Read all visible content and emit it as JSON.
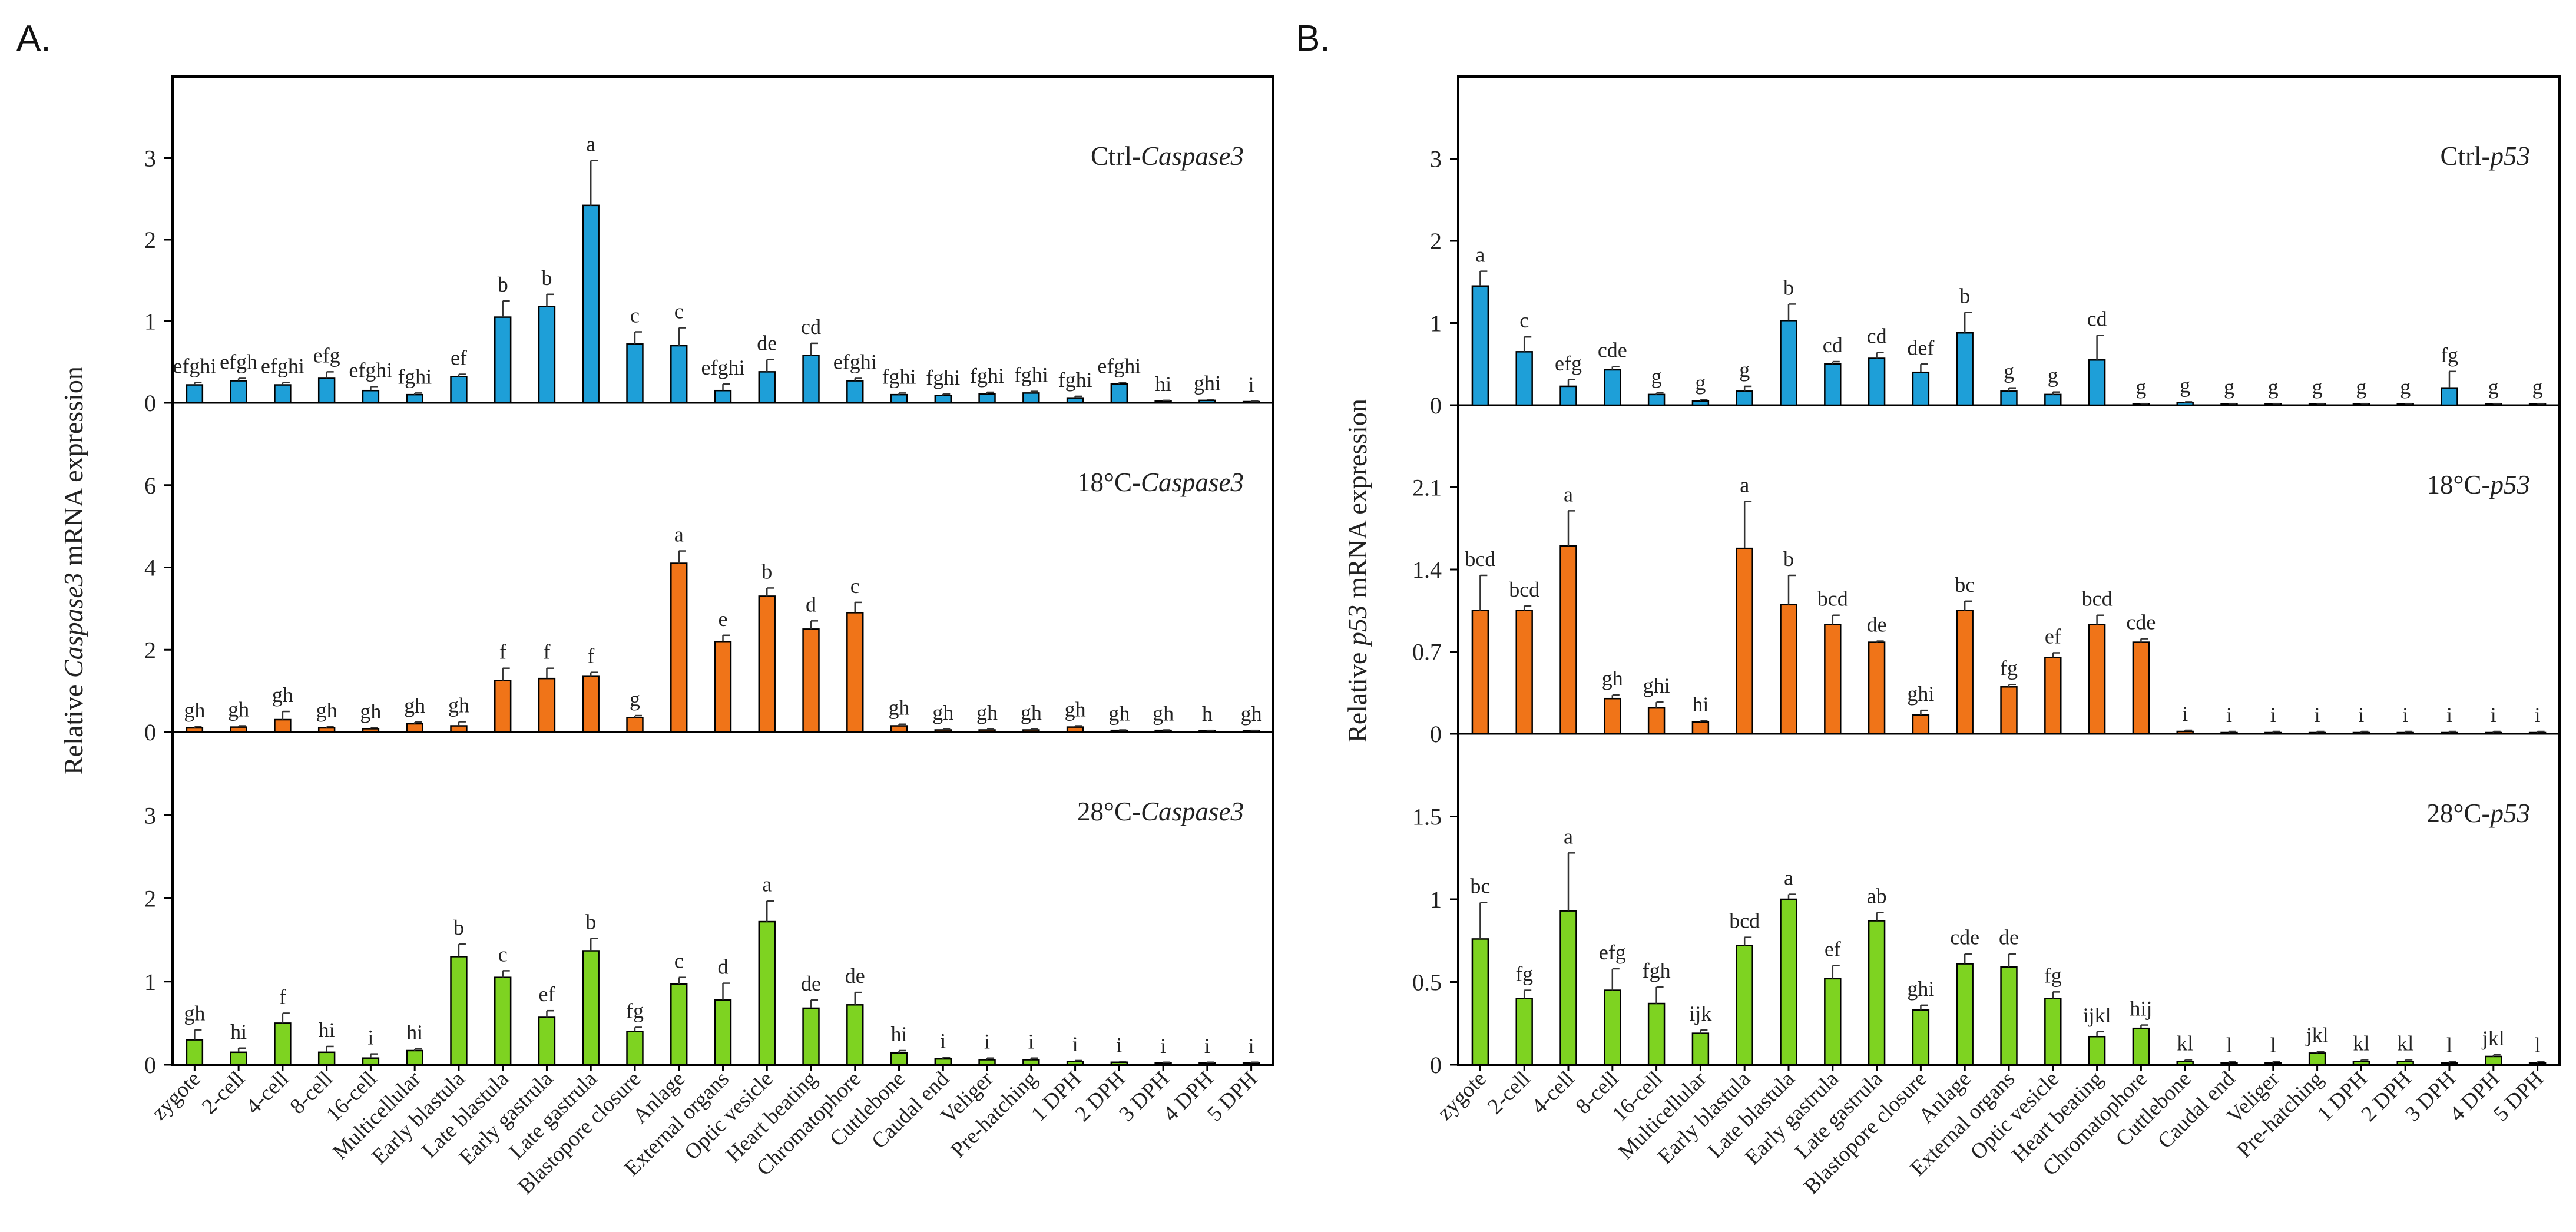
{
  "figure": {
    "panel_labels": [
      "A.",
      "B."
    ]
  },
  "colors": {
    "ctrl": "#1e9fd8",
    "cold": "#f07418",
    "warm": "#7ed321",
    "axis": "#000000",
    "error": "#333333"
  },
  "chart_data": [
    {
      "panel": "A.",
      "type": "bar",
      "ylabel_parts": [
        "Relative ",
        "Caspase3",
        " mRNA expression"
      ],
      "categories": [
        "zygote",
        "2-cell",
        "4-cell",
        "8-cell",
        "16-cell",
        "Multicellular",
        "Early blastula",
        "Late blastula",
        "Early gastrula",
        "Late gastrula",
        "Blastopore closure",
        "Anlage",
        "External organs",
        "Optic vesicle",
        "Heart beating",
        "Chromatophore",
        "Cuttlebone",
        "Caudal end",
        "Veliger",
        "Pre-hatching",
        "1 DPH",
        "2 DPH",
        "3 DPH",
        "4 DPH",
        "5 DPH"
      ],
      "subplots": [
        {
          "label_prefix": "Ctrl-",
          "label_gene": "Caspase3",
          "color_key": "ctrl",
          "ylim": [
            0,
            4
          ],
          "yticks": [
            0,
            1,
            2,
            3
          ],
          "tick_labels": [
            "0",
            "1",
            "2",
            "3"
          ],
          "values": [
            0.22,
            0.27,
            0.22,
            0.3,
            0.15,
            0.1,
            0.32,
            1.05,
            1.18,
            2.42,
            0.72,
            0.7,
            0.15,
            0.38,
            0.58,
            0.27,
            0.1,
            0.09,
            0.11,
            0.12,
            0.06,
            0.23,
            0.02,
            0.03,
            0.01
          ],
          "errors": [
            0.03,
            0.03,
            0.03,
            0.08,
            0.05,
            0.02,
            0.03,
            0.2,
            0.15,
            0.55,
            0.15,
            0.22,
            0.08,
            0.15,
            0.15,
            0.03,
            0.02,
            0.02,
            0.02,
            0.02,
            0.02,
            0.02,
            0.01,
            0.01,
            0.01
          ],
          "letters": [
            "efghi",
            "efgh",
            "efghi",
            "efg",
            "efghi",
            "fghi",
            "ef",
            "b",
            "b",
            "a",
            "c",
            "c",
            "efghi",
            "de",
            "cd",
            "efghi",
            "fghi",
            "fghi",
            "fghi",
            "fghi",
            "fghi",
            "efghi",
            "hi",
            "ghi",
            "i"
          ]
        },
        {
          "label_prefix": "18°C-",
          "label_gene": "Caspase3",
          "color_key": "cold",
          "ylim": [
            0,
            8
          ],
          "yticks": [
            0,
            2,
            4,
            6
          ],
          "tick_labels": [
            "0",
            "2",
            "4",
            "6"
          ],
          "values": [
            0.1,
            0.12,
            0.3,
            0.1,
            0.08,
            0.2,
            0.15,
            1.25,
            1.3,
            1.35,
            0.35,
            4.1,
            2.2,
            3.3,
            2.5,
            2.9,
            0.15,
            0.05,
            0.05,
            0.05,
            0.12,
            0.04,
            0.04,
            0.03,
            0.03
          ],
          "errors": [
            0.03,
            0.03,
            0.2,
            0.03,
            0.02,
            0.04,
            0.1,
            0.3,
            0.25,
            0.1,
            0.05,
            0.3,
            0.15,
            0.2,
            0.2,
            0.25,
            0.04,
            0.02,
            0.02,
            0.02,
            0.03,
            0.01,
            0.01,
            0.01,
            0.01
          ],
          "letters": [
            "gh",
            "gh",
            "gh",
            "gh",
            "gh",
            "gh",
            "gh",
            "f",
            "f",
            "f",
            "g",
            "a",
            "e",
            "b",
            "d",
            "c",
            "gh",
            "gh",
            "gh",
            "gh",
            "gh",
            "gh",
            "gh",
            "h",
            "gh"
          ]
        },
        {
          "label_prefix": "28°C-",
          "label_gene": "Caspase3",
          "color_key": "warm",
          "ylim": [
            0,
            4
          ],
          "yticks": [
            0,
            1,
            2,
            3
          ],
          "tick_labels": [
            "0",
            "1",
            "2",
            "3"
          ],
          "values": [
            0.3,
            0.15,
            0.5,
            0.15,
            0.08,
            0.17,
            1.3,
            1.05,
            0.57,
            1.37,
            0.4,
            0.97,
            0.78,
            1.72,
            0.68,
            0.72,
            0.14,
            0.07,
            0.06,
            0.06,
            0.04,
            0.03,
            0.02,
            0.02,
            0.02
          ],
          "errors": [
            0.12,
            0.05,
            0.12,
            0.07,
            0.05,
            0.02,
            0.15,
            0.08,
            0.08,
            0.15,
            0.05,
            0.08,
            0.2,
            0.25,
            0.1,
            0.15,
            0.03,
            0.02,
            0.02,
            0.02,
            0.01,
            0.01,
            0.01,
            0.01,
            0.01
          ],
          "letters": [
            "gh",
            "hi",
            "f",
            "hi",
            "i",
            "hi",
            "b",
            "c",
            "ef",
            "b",
            "fg",
            "c",
            "d",
            "a",
            "de",
            "de",
            "hi",
            "i",
            "i",
            "i",
            "i",
            "i",
            "i",
            "i",
            "i"
          ]
        }
      ]
    },
    {
      "panel": "B.",
      "type": "bar",
      "ylabel_parts": [
        "Relative ",
        "p53",
        " mRNA expression"
      ],
      "categories": [
        "zygote",
        "2-cell",
        "4-cell",
        "8-cell",
        "16-cell",
        "Multicellular",
        "Early blastula",
        "Late blastula",
        "Early gastrula",
        "Late gastrula",
        "Blastopore closure",
        "Anlage",
        "External organs",
        "Optic vesicle",
        "Heart beating",
        "Chromatophore",
        "Cuttlebone",
        "Caudal end",
        "Veliger",
        "Pre-hatching",
        "1 DPH",
        "2 DPH",
        "3 DPH",
        "4 DPH",
        "5 DPH"
      ],
      "subplots": [
        {
          "label_prefix": "Ctrl-",
          "label_gene": "p53",
          "color_key": "ctrl",
          "ylim": [
            0,
            4
          ],
          "yticks": [
            0,
            1,
            2,
            3
          ],
          "tick_labels": [
            "0",
            "1",
            "2",
            "3"
          ],
          "values": [
            1.45,
            0.65,
            0.23,
            0.43,
            0.13,
            0.05,
            0.17,
            1.03,
            0.5,
            0.57,
            0.4,
            0.88,
            0.17,
            0.13,
            0.55,
            0.01,
            0.03,
            0.01,
            0.01,
            0.01,
            0.01,
            0.01,
            0.21,
            0.01,
            0.01
          ],
          "errors": [
            0.18,
            0.18,
            0.08,
            0.04,
            0.02,
            0.02,
            0.06,
            0.2,
            0.03,
            0.07,
            0.1,
            0.25,
            0.04,
            0.03,
            0.3,
            0.01,
            0.01,
            0.01,
            0.01,
            0.01,
            0.01,
            0.01,
            0.2,
            0.01,
            0.01
          ],
          "letters": [
            "a",
            "c",
            "efg",
            "cde",
            "g",
            "g",
            "g",
            "b",
            "cd",
            "cd",
            "def",
            "b",
            "g",
            "g",
            "cd",
            "g",
            "g",
            "g",
            "g",
            "g",
            "g",
            "g",
            "fg",
            "g",
            "g"
          ]
        },
        {
          "label_prefix": "18°C-",
          "label_gene": "p53",
          "color_key": "cold",
          "ylim": [
            0,
            2.8
          ],
          "yticks": [
            0,
            0.7,
            1.4,
            2.1
          ],
          "tick_labels": [
            "0",
            "0.7",
            "1.4",
            "2.1"
          ],
          "values": [
            1.05,
            1.05,
            1.6,
            0.3,
            0.22,
            0.1,
            1.58,
            1.1,
            0.93,
            0.78,
            0.16,
            1.05,
            0.4,
            0.65,
            0.93,
            0.78,
            0.02,
            0.01,
            0.01,
            0.01,
            0.01,
            0.01,
            0.01,
            0.01,
            0.01
          ],
          "errors": [
            0.3,
            0.04,
            0.3,
            0.03,
            0.05,
            0.01,
            0.4,
            0.25,
            0.08,
            0.01,
            0.04,
            0.08,
            0.02,
            0.04,
            0.08,
            0.03,
            0.01,
            0.01,
            0.01,
            0.01,
            0.01,
            0.01,
            0.01,
            0.01,
            0.01
          ],
          "letters": [
            "bcd",
            "bcd",
            "a",
            "gh",
            "ghi",
            "hi",
            "a",
            "b",
            "bcd",
            "de",
            "ghi",
            "bc",
            "fg",
            "ef",
            "bcd",
            "cde",
            "i",
            "i",
            "i",
            "i",
            "i",
            "i",
            "i",
            "i",
            "i"
          ]
        },
        {
          "label_prefix": "28°C-",
          "label_gene": "p53",
          "color_key": "warm",
          "ylim": [
            0,
            2
          ],
          "yticks": [
            0,
            0.5,
            1,
            1.5
          ],
          "tick_labels": [
            "0",
            "0.5",
            "1",
            "1.5"
          ],
          "values": [
            0.76,
            0.4,
            0.93,
            0.45,
            0.37,
            0.19,
            0.72,
            1.0,
            0.52,
            0.87,
            0.33,
            0.61,
            0.59,
            0.4,
            0.17,
            0.22,
            0.02,
            0.01,
            0.01,
            0.07,
            0.02,
            0.02,
            0.01,
            0.05,
            0.01
          ],
          "errors": [
            0.22,
            0.05,
            0.35,
            0.13,
            0.1,
            0.02,
            0.05,
            0.03,
            0.08,
            0.05,
            0.03,
            0.06,
            0.08,
            0.04,
            0.03,
            0.02,
            0.01,
            0.01,
            0.01,
            0.01,
            0.01,
            0.01,
            0.01,
            0.01,
            0.01
          ],
          "letters": [
            "bc",
            "fg",
            "a",
            "efg",
            "fgh",
            "ijk",
            "bcd",
            "a",
            "ef",
            "ab",
            "ghi",
            "cde",
            "de",
            "fg",
            "ijkl",
            "hij",
            "kl",
            "l",
            "l",
            "jkl",
            "kl",
            "kl",
            "l",
            "jkl",
            "l"
          ]
        }
      ]
    }
  ]
}
